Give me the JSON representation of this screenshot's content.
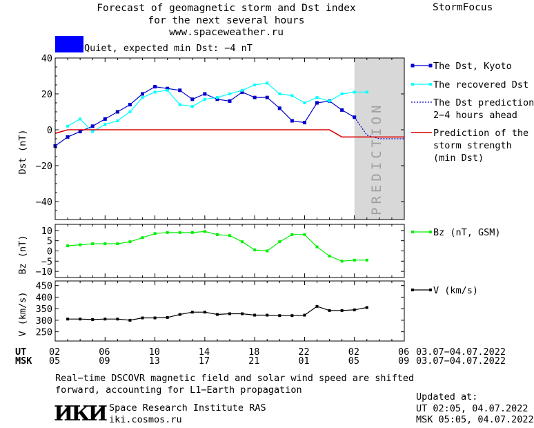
{
  "header": {
    "title_line1": "Forecast of geomagnetic storm and Dst index",
    "title_line2": "for the next several hours",
    "url": "www.spaceweather.ru",
    "brand": "StormFocus"
  },
  "status": {
    "text": "Quiet, expected min Dst: −4 nT",
    "color": "#0000ff"
  },
  "legend": {
    "dst_kyoto": "The Dst, Kyoto",
    "dst_recovered": "The recovered Dst",
    "dst_pred_1": "The Dst prediction",
    "dst_pred_2": "2−4 hours ahead",
    "storm_1": "Prediction of the",
    "storm_2": "storm strength",
    "storm_3": "(min Dst)",
    "bz": "Bz (nT, GSM)",
    "v": "V (km/s)"
  },
  "prediction_label": "PREDICTION",
  "time_axis": {
    "ut_label": "UT",
    "msk_label": "MSK",
    "ut_ticks": [
      "02",
      "06",
      "10",
      "14",
      "18",
      "22",
      "02",
      "06"
    ],
    "msk_ticks": [
      "05",
      "09",
      "13",
      "17",
      "21",
      "01",
      "05",
      "09"
    ],
    "date_range_ut": "03.07−04.07.2022",
    "date_range_msk": "03.07−04.07.2022"
  },
  "footer": {
    "note_line1": "Real−time DSCOVR magnetic field and solar wind speed are shifted",
    "note_line2": "forward, accounting for L1−Earth propagation",
    "institute": "Space Research Institute RAS",
    "site": "iki.cosmos.ru",
    "logo": "ИКИ",
    "updated_label": "Updated at:",
    "updated_ut": "UT  02:05, 04.07.2022",
    "updated_msk": "MSK 05:05, 04.07.2022"
  },
  "chart_data": [
    {
      "type": "line",
      "name": "dst-panel",
      "ylabel": "Dst (nT)",
      "xlabel": "",
      "ylim": [
        -50,
        40
      ],
      "yticks": [
        40,
        20,
        0,
        -20,
        -40
      ],
      "xlim": [
        0,
        28
      ],
      "prediction_start": 24,
      "series": [
        {
          "name": "The Dst, Kyoto",
          "color": "#0000cc",
          "x": [
            0,
            1,
            2,
            3,
            4,
            5,
            6,
            7,
            8,
            9,
            10,
            11,
            12,
            13,
            14,
            15,
            16,
            17,
            18,
            19,
            20,
            21,
            22,
            23,
            24
          ],
          "y": [
            -9,
            -4,
            -1,
            2,
            6,
            10,
            14,
            20,
            24,
            23,
            22,
            17,
            20,
            17,
            16,
            21,
            18,
            18,
            12,
            5,
            4,
            15,
            16,
            11,
            7
          ]
        },
        {
          "name": "The recovered Dst",
          "color": "#00ffff",
          "x": [
            1,
            2,
            3,
            4,
            5,
            6,
            7,
            8,
            9,
            10,
            11,
            12,
            13,
            14,
            15,
            16,
            17,
            18,
            19,
            20,
            21,
            22,
            23,
            24,
            25
          ],
          "y": [
            2,
            6,
            -1,
            3,
            5,
            10,
            18,
            21,
            22,
            14,
            13,
            17,
            18,
            20,
            22,
            25,
            26,
            20,
            19,
            15,
            18,
            16,
            20,
            21,
            21
          ]
        },
        {
          "name": "The Dst prediction 2−4 hours ahead",
          "color": "#0000cc",
          "x": [
            24,
            25,
            26,
            27,
            28
          ],
          "y": [
            7,
            -3,
            -5,
            -5,
            -5
          ]
        },
        {
          "name": "Prediction of the storm strength (min Dst)",
          "color": "#dd0000",
          "x": [
            0,
            1,
            2,
            3,
            4,
            5,
            6,
            7,
            8,
            9,
            10,
            11,
            12,
            13,
            14,
            15,
            16,
            17,
            18,
            19,
            20,
            21,
            22,
            23,
            24,
            25,
            26,
            27,
            28
          ],
          "y": [
            -2,
            0,
            0,
            0,
            0,
            0,
            0,
            0,
            0,
            0,
            0,
            0,
            0,
            0,
            0,
            0,
            0,
            0,
            0,
            0,
            0,
            0,
            0,
            -4,
            -4,
            -4,
            -4,
            -4,
            -4
          ]
        }
      ]
    },
    {
      "type": "line",
      "name": "bz-panel",
      "ylabel": "Bz (nT)",
      "xlabel": "",
      "ylim": [
        -13,
        13
      ],
      "yticks": [
        10,
        5,
        0,
        -5,
        -10
      ],
      "xlim": [
        0,
        28
      ],
      "series": [
        {
          "name": "Bz (nT, GSM)",
          "color": "#00ee00",
          "x": [
            1,
            2,
            3,
            4,
            5,
            6,
            7,
            8,
            9,
            10,
            11,
            12,
            13,
            14,
            15,
            16,
            17,
            18,
            19,
            20,
            21,
            22,
            23,
            24,
            25
          ],
          "y": [
            2.5,
            3,
            3.5,
            3.5,
            3.5,
            4.5,
            6.5,
            8.5,
            9,
            9,
            9,
            9.5,
            8,
            7.5,
            4.5,
            0.5,
            0,
            4.5,
            8,
            8,
            2,
            -2.5,
            -5,
            -4.5,
            -4.5
          ]
        }
      ]
    },
    {
      "type": "line",
      "name": "v-panel",
      "ylabel": "V (km/s)",
      "xlabel": "",
      "ylim": [
        210,
        470
      ],
      "yticks": [
        450,
        400,
        350,
        300,
        250
      ],
      "xlim": [
        0,
        28
      ],
      "series": [
        {
          "name": "V (km/s)",
          "color": "#000000",
          "x": [
            1,
            2,
            3,
            4,
            5,
            6,
            7,
            8,
            9,
            10,
            11,
            12,
            13,
            14,
            15,
            16,
            17,
            18,
            19,
            20,
            21,
            22,
            23,
            24,
            25
          ],
          "y": [
            305,
            305,
            303,
            305,
            305,
            300,
            310,
            310,
            312,
            325,
            335,
            335,
            325,
            328,
            328,
            322,
            322,
            320,
            320,
            322,
            360,
            342,
            342,
            345,
            355
          ]
        }
      ]
    }
  ]
}
